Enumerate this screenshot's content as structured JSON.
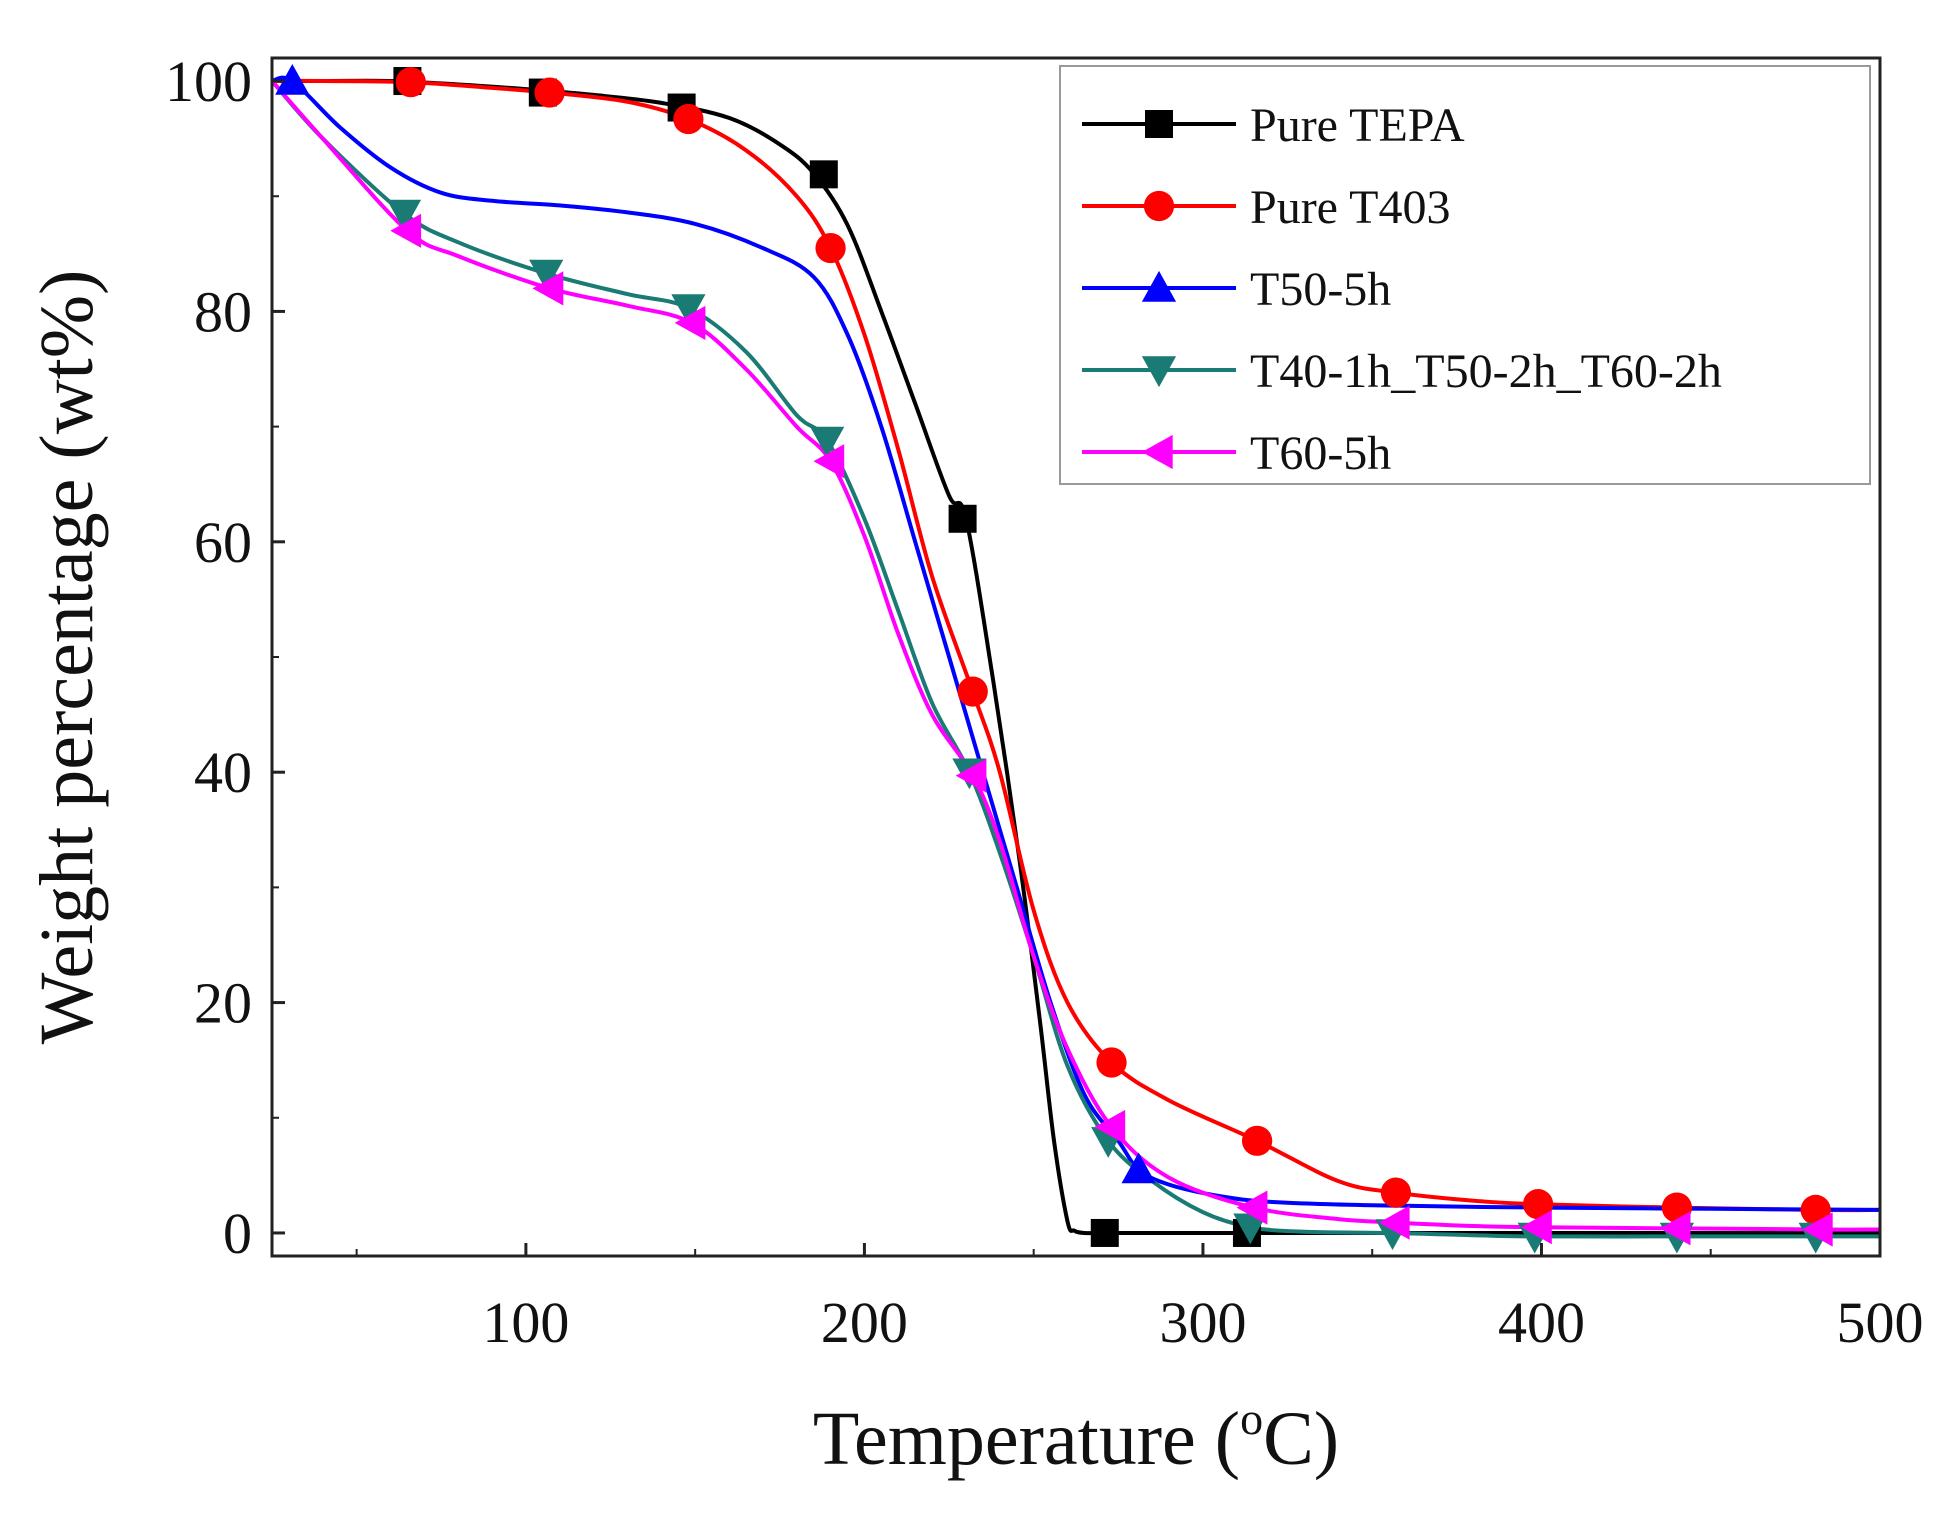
{
  "chart_data": {
    "type": "line",
    "title": "",
    "xlabel": "Temperature (",
    "xlabel_sup": "o",
    "xlabel_tail": "C)",
    "ylabel": "Weight percentage (wt%)",
    "xlim": [
      25,
      500
    ],
    "ylim": [
      -2,
      102
    ],
    "xticks": [
      100,
      200,
      300,
      400,
      500
    ],
    "yticks": [
      0,
      20,
      40,
      60,
      80,
      100
    ],
    "grid": false,
    "legend_position": "top-right",
    "series": [
      {
        "name": "Pure TEPA",
        "color": "#000000",
        "marker": "square",
        "x": [
          25,
          40,
          60,
          80,
          100,
          120,
          140,
          160,
          175,
          185,
          195,
          205,
          215,
          225,
          230,
          238,
          246,
          252,
          256,
          260,
          262,
          265,
          270,
          290,
          320,
          360,
          400,
          440,
          480,
          500
        ],
        "y": [
          100,
          100,
          100,
          99.7,
          99.3,
          98.8,
          98.1,
          96.8,
          94.5,
          92.0,
          87.5,
          80.0,
          72.0,
          64.0,
          62.0,
          48.0,
          32.0,
          18.0,
          8.0,
          1.0,
          0.2,
          0,
          0,
          0,
          0,
          0,
          0,
          0,
          0,
          0
        ],
        "marker_x": [
          65,
          105,
          146,
          188,
          229,
          271,
          313
        ],
        "marker_y": [
          100,
          99,
          97.7,
          91.9,
          62,
          0,
          0
        ]
      },
      {
        "name": "Pure T403",
        "color": "#ff0000",
        "marker": "circle",
        "x": [
          25,
          40,
          66,
          90,
          107,
          130,
          148,
          165,
          180,
          190,
          200,
          210,
          220,
          232,
          240,
          250,
          260,
          273,
          290,
          316,
          340,
          357,
          380,
          399,
          440,
          481,
          500
        ],
        "y": [
          100,
          100,
          99.9,
          99.4,
          99.0,
          98.2,
          96.7,
          94.0,
          90.0,
          85.5,
          78.0,
          68.0,
          57.0,
          47.0,
          40.0,
          28.0,
          20.0,
          14.8,
          11.5,
          8.0,
          4.5,
          3.5,
          2.8,
          2.5,
          2.2,
          2.0,
          2.0
        ],
        "marker_x": [
          66,
          107,
          148,
          190,
          232,
          273,
          316,
          357,
          399,
          440,
          481
        ],
        "marker_y": [
          99.9,
          99.0,
          96.7,
          85.5,
          47.0,
          14.8,
          8.0,
          3.5,
          2.5,
          2.2,
          2.0
        ]
      },
      {
        "name": "T50-5h",
        "color": "#0000ff",
        "marker": "triangle-up",
        "x": [
          25,
          31,
          45,
          60,
          75,
          90,
          110,
          130,
          150,
          170,
          185,
          195,
          205,
          215,
          225,
          235,
          245,
          255,
          265,
          275,
          281,
          290,
          305,
          320,
          350,
          400,
          450,
          500
        ],
        "y": [
          100,
          100,
          96.0,
          92.5,
          90.3,
          89.6,
          89.2,
          88.6,
          87.6,
          85.5,
          83.0,
          78.0,
          70.0,
          60.0,
          50.0,
          40.0,
          30.0,
          20.0,
          12.0,
          8.0,
          5.5,
          4.2,
          3.2,
          2.7,
          2.4,
          2.2,
          2.1,
          2.0
        ],
        "marker_x": [
          31,
          281
        ],
        "marker_y": [
          100,
          5.5
        ]
      },
      {
        "name": "T40-1h_T50-2h_T60-2h",
        "color": "#1a7a74",
        "marker": "triangle-down",
        "x": [
          25,
          40,
          64,
          80,
          106,
          130,
          148,
          165,
          180,
          189,
          200,
          210,
          220,
          231,
          240,
          250,
          260,
          272,
          285,
          300,
          314,
          330,
          356,
          380,
          398,
          440,
          481,
          500
        ],
        "y": [
          100,
          95.0,
          88.5,
          86.0,
          83.3,
          81.5,
          80.3,
          76.5,
          71.0,
          68.8,
          62.0,
          54.0,
          46.0,
          40.0,
          33.0,
          24.0,
          14.5,
          8.0,
          4.5,
          1.8,
          0.5,
          0.1,
          0,
          -0.2,
          -0.3,
          -0.3,
          -0.3,
          -0.3
        ],
        "marker_x": [
          64,
          106,
          148,
          189,
          231,
          272,
          314,
          356,
          398,
          440,
          481
        ],
        "marker_y": [
          88.5,
          83.3,
          80.3,
          68.8,
          40.0,
          8.0,
          0.5,
          0,
          -0.3,
          -0.3,
          -0.3
        ]
      },
      {
        "name": "T60-5h",
        "color": "#ff00ff",
        "marker": "triangle-left",
        "x": [
          25,
          40,
          65,
          80,
          107,
          130,
          149,
          165,
          180,
          190,
          200,
          210,
          220,
          232,
          240,
          250,
          260,
          273,
          290,
          315,
          340,
          357,
          380,
          399,
          440,
          482,
          500
        ],
        "y": [
          100,
          95.0,
          87.0,
          84.8,
          82.0,
          80.5,
          79.0,
          75.0,
          70.0,
          67.0,
          60.5,
          52.0,
          45.0,
          39.7,
          34.0,
          24.0,
          16.0,
          9.2,
          4.8,
          2.2,
          1.2,
          0.9,
          0.6,
          0.5,
          0.4,
          0.3,
          0.3
        ],
        "marker_x": [
          65,
          107,
          149,
          190,
          232,
          273,
          315,
          357,
          399,
          440,
          482
        ],
        "marker_y": [
          87.0,
          82.0,
          79.0,
          67.0,
          39.7,
          9.2,
          2.2,
          0.9,
          0.5,
          0.4,
          0.3
        ]
      }
    ]
  }
}
